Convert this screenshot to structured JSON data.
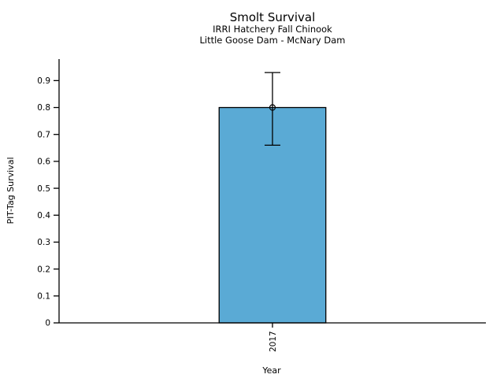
{
  "chart_data": {
    "type": "bar",
    "title": "Smolt Survival",
    "subtitle": [
      "IRRI Hatchery Fall Chinook",
      "Little Goose Dam - McNary Dam"
    ],
    "xlabel": "Year",
    "ylabel": "PIT-Tag Survival",
    "categories": [
      "2017"
    ],
    "values": [
      0.8
    ],
    "error_bars": {
      "low": [
        0.66
      ],
      "high": [
        0.93
      ]
    },
    "marker": "open-circle",
    "yticks": [
      0,
      0.1,
      0.2,
      0.3,
      0.4,
      0.5,
      0.6,
      0.7,
      0.8,
      0.9
    ],
    "ytick_labels": [
      "0",
      "0.1",
      "0.2",
      "0.3",
      "0.4",
      "0.5",
      "0.6",
      "0.7",
      "0.8",
      "0.9"
    ],
    "ylim": [
      0,
      0.98
    ],
    "grid": false,
    "legend": "none",
    "colors": {
      "bar_fill": "#5AAAD5",
      "bar_edge": "#000000",
      "axis": "#000000",
      "error_bar": "#000000",
      "background": "#ffffff"
    }
  }
}
